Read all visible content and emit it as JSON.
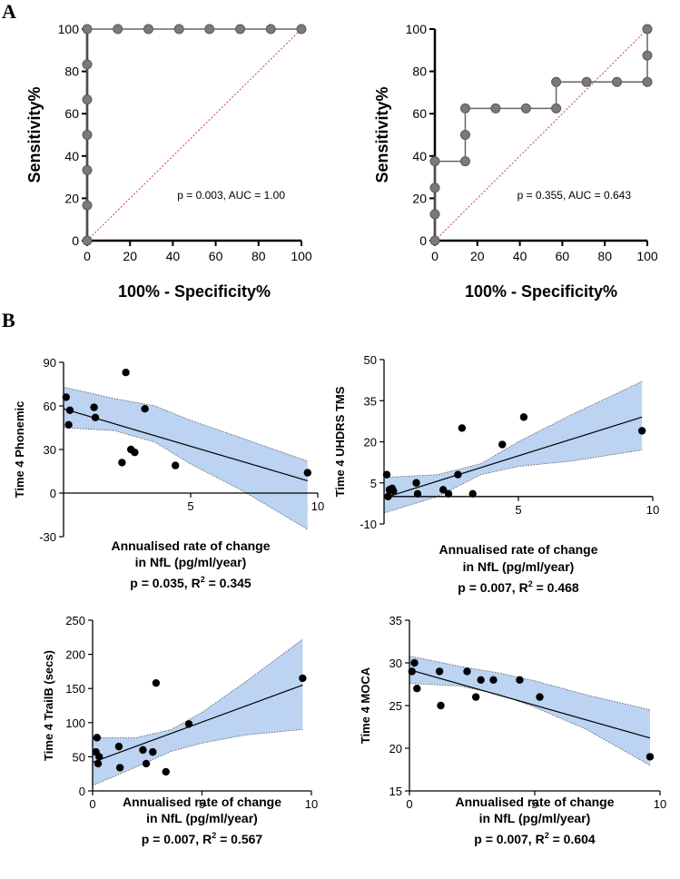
{
  "panel_labels": {
    "a": "A",
    "b": "B"
  },
  "chart_data": [
    {
      "id": "roc1",
      "type": "line",
      "title": "",
      "xlabel": "100% - Specificity%",
      "ylabel": "Sensitivity%",
      "xlim": [
        0,
        100
      ],
      "ylim": [
        0,
        100
      ],
      "xticks": [
        0,
        20,
        40,
        60,
        80,
        100
      ],
      "yticks": [
        0,
        20,
        40,
        60,
        80,
        100
      ],
      "annotation": "p = 0.003, AUC = 1.00",
      "series": [
        {
          "name": "ROC",
          "x": [
            0,
            0,
            0,
            0,
            0,
            0,
            0,
            14.3,
            28.6,
            42.9,
            57.1,
            71.4,
            85.7,
            100
          ],
          "y": [
            0,
            16.7,
            33.3,
            50,
            66.7,
            83.3,
            100,
            100,
            100,
            100,
            100,
            100,
            100,
            100
          ]
        },
        {
          "name": "reference",
          "x": [
            0,
            100
          ],
          "y": [
            0,
            100
          ]
        }
      ]
    },
    {
      "id": "roc2",
      "type": "line",
      "title": "",
      "xlabel": "100% - Specificity%",
      "ylabel": "Sensitivity%",
      "xlim": [
        0,
        100
      ],
      "ylim": [
        0,
        100
      ],
      "xticks": [
        0,
        20,
        40,
        60,
        80,
        100
      ],
      "yticks": [
        0,
        20,
        40,
        60,
        80,
        100
      ],
      "annotation": "p = 0.355, AUC = 0.643",
      "series": [
        {
          "name": "ROC",
          "x": [
            0,
            0,
            0,
            0,
            14.3,
            14.3,
            14.3,
            28.6,
            42.9,
            57.1,
            57.1,
            71.4,
            85.7,
            100,
            100,
            100
          ],
          "y": [
            0,
            12.5,
            25,
            37.5,
            37.5,
            50,
            62.5,
            62.5,
            62.5,
            62.5,
            75,
            75,
            75,
            75,
            87.5,
            100
          ]
        },
        {
          "name": "reference",
          "x": [
            0,
            100
          ],
          "y": [
            0,
            100
          ]
        }
      ]
    },
    {
      "id": "sc1",
      "type": "scatter",
      "ylabel": "Time 4 Phonemic",
      "xlabel_line1": "Annualised rate of change",
      "xlabel_line2": "in NfL (pg/ml/year)",
      "stat_text": "p = 0.035, R",
      "stat_exp": "2",
      "stat_tail": " = 0.345",
      "xlim": [
        0,
        10
      ],
      "ylim": [
        -30,
        90
      ],
      "xticks": [
        5,
        10
      ],
      "yticks": [
        -30,
        0,
        30,
        60,
        90
      ],
      "x": [
        0.1,
        0.2,
        0.25,
        1.2,
        1.25,
        2.3,
        2.45,
        2.65,
        2.8,
        3.2,
        4.4,
        9.6
      ],
      "y": [
        66,
        47,
        57,
        59,
        52,
        21,
        83,
        30,
        28,
        58,
        19,
        14
      ],
      "fit": {
        "x": [
          0,
          9.6
        ],
        "y": [
          58,
          8.5
        ]
      },
      "band_upper": [
        [
          0,
          73
        ],
        [
          2,
          65
        ],
        [
          3.6,
          60
        ],
        [
          5,
          50
        ],
        [
          7,
          38
        ],
        [
          9.6,
          22
        ]
      ],
      "band_lower": [
        [
          0,
          45
        ],
        [
          2,
          43
        ],
        [
          3.6,
          35
        ],
        [
          5,
          20
        ],
        [
          7,
          2
        ],
        [
          9.6,
          -25
        ]
      ]
    },
    {
      "id": "sc2",
      "type": "scatter",
      "ylabel": "Time 4 UHDRS TMS",
      "xlabel_line1": "Annualised rate of change",
      "xlabel_line2": "in NfL (pg/ml/year)",
      "stat_text": "p = 0.007, R",
      "stat_exp": "2",
      "stat_tail": " = 0.468",
      "xlim": [
        0,
        10
      ],
      "ylim": [
        -10,
        50
      ],
      "xticks": [
        5,
        10
      ],
      "yticks": [
        -10,
        5,
        20,
        35,
        50
      ],
      "x": [
        0.1,
        0.15,
        0.2,
        0.3,
        0.35,
        1.2,
        1.25,
        2.2,
        2.4,
        2.75,
        2.9,
        3.3,
        4.4,
        5.2,
        9.6
      ],
      "y": [
        8,
        0,
        2.5,
        3,
        2,
        5,
        1,
        2.5,
        1,
        8,
        25,
        1,
        19,
        29,
        24
      ],
      "fit": {
        "x": [
          0,
          9.6
        ],
        "y": [
          -0.5,
          29
        ]
      },
      "band_upper": [
        [
          0,
          7
        ],
        [
          2,
          8
        ],
        [
          3.6,
          12
        ],
        [
          5,
          20
        ],
        [
          7,
          30
        ],
        [
          9.6,
          42
        ]
      ],
      "band_lower": [
        [
          0,
          -6
        ],
        [
          2,
          0
        ],
        [
          3.6,
          8
        ],
        [
          5,
          11
        ],
        [
          7,
          13
        ],
        [
          9.6,
          17
        ]
      ]
    },
    {
      "id": "sc3",
      "type": "scatter",
      "ylabel": "Time 4 TrailB (secs)",
      "xlabel_line1": "Annualised rate of change",
      "xlabel_line2": "in NfL (pg/ml/year)",
      "stat_text": "p = 0.007, R",
      "stat_exp": "2",
      "stat_tail": " = 0.567",
      "xlim": [
        0,
        10
      ],
      "ylim": [
        0,
        250
      ],
      "xticks": [
        0,
        5,
        10
      ],
      "yticks": [
        0,
        50,
        100,
        150,
        200,
        250
      ],
      "x": [
        0.15,
        0.2,
        0.25,
        0.3,
        1.2,
        1.25,
        2.3,
        2.45,
        2.75,
        2.9,
        3.35,
        4.4,
        9.6
      ],
      "y": [
        57,
        78,
        40,
        50,
        65,
        34,
        60,
        40,
        57,
        158,
        28,
        98,
        165
      ],
      "fit": {
        "x": [
          0,
          9.6
        ],
        "y": [
          42,
          155
        ]
      },
      "band_upper": [
        [
          0,
          78
        ],
        [
          2,
          78
        ],
        [
          3.6,
          90
        ],
        [
          5,
          115
        ],
        [
          7,
          160
        ],
        [
          9.6,
          222
        ]
      ],
      "band_lower": [
        [
          0,
          8
        ],
        [
          2,
          35
        ],
        [
          3.6,
          58
        ],
        [
          5,
          70
        ],
        [
          7,
          82
        ],
        [
          9.6,
          90
        ]
      ]
    },
    {
      "id": "sc4",
      "type": "scatter",
      "ylabel": "Time 4 MOCA",
      "xlabel_line1": "Annualised rate of change",
      "xlabel_line2": "in NfL (pg/ml/year)",
      "stat_text": "p = 0.007, R",
      "stat_exp": "2",
      "stat_tail": " = 0.604",
      "xlim": [
        0,
        10
      ],
      "ylim": [
        15,
        35
      ],
      "xticks": [
        0,
        5,
        10
      ],
      "yticks": [
        15,
        20,
        25,
        30,
        35
      ],
      "x": [
        0.1,
        0.2,
        0.3,
        1.2,
        1.25,
        2.3,
        2.65,
        2.85,
        3.35,
        4.4,
        5.2,
        9.6
      ],
      "y": [
        29,
        30,
        27,
        29,
        25,
        29,
        26,
        28,
        28,
        28,
        26,
        19
      ],
      "fit": {
        "x": [
          0,
          9.6
        ],
        "y": [
          29.2,
          21.2
        ]
      },
      "band_upper": [
        [
          0,
          30.8
        ],
        [
          2,
          29.6
        ],
        [
          3.6,
          28.8
        ],
        [
          5,
          27.9
        ],
        [
          7,
          26.3
        ],
        [
          9.6,
          24.5
        ]
      ],
      "band_lower": [
        [
          0,
          27.6
        ],
        [
          2,
          27.3
        ],
        [
          3.6,
          26.3
        ],
        [
          5,
          24.8
        ],
        [
          7,
          22.3
        ],
        [
          9.6,
          18
        ]
      ]
    }
  ]
}
